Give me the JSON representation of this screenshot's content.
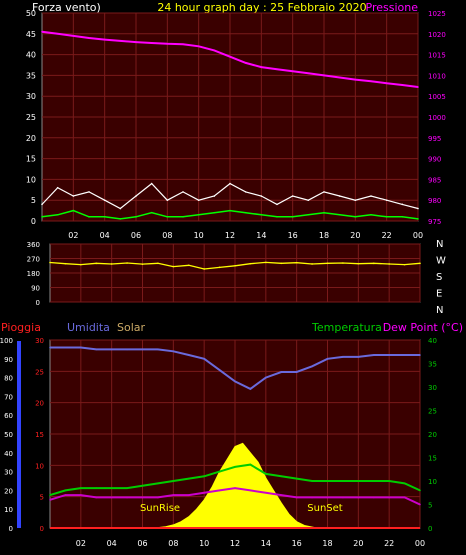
{
  "header": {
    "wind_label": "Forza vento)",
    "title": "24 hour graph day : 25 Febbraio 2020",
    "pressure_label": "Pressione"
  },
  "rain_legend": {
    "rain": "Pioggia",
    "humidity": "Umidita",
    "solar": "Solar",
    "temperature": "Temperatura",
    "dewpoint": "Dew Point (°C)"
  },
  "annotations": {
    "sunrise": "SunRise",
    "sunset": "SunSet"
  },
  "colors": {
    "panel_bg": "#3a0000",
    "grid": "#7a1a1a",
    "wind_axis": "#ffffff",
    "pressure": "#ff00ff",
    "pressure_axis": "#ff00ff",
    "wind_gust": "#ffffff",
    "wind_avg": "#00ff00",
    "direction": "#ffff00",
    "rain": "#ff2020",
    "humidity": "#6a6adc",
    "solar": "#ffff00",
    "temperature": "#00cc00",
    "dewpoint": "#cc00cc"
  },
  "chart_data": [
    {
      "type": "line",
      "xlabel": "",
      "x_ticks": [
        "02",
        "04",
        "06",
        "08",
        "10",
        "12",
        "14",
        "16",
        "18",
        "20",
        "22",
        "00"
      ],
      "left_axis": {
        "label": "Forza vento)",
        "ylim": [
          0,
          50
        ],
        "ticks": [
          0,
          5,
          10,
          15,
          20,
          25,
          30,
          35,
          40,
          45,
          50
        ]
      },
      "right_axis": {
        "label": "Pressione",
        "ylim": [
          975,
          1025
        ],
        "ticks": [
          975,
          980,
          985,
          990,
          995,
          1000,
          1005,
          1010,
          1015,
          1020,
          1025
        ]
      },
      "series": [
        {
          "name": "Pressione",
          "axis": "right",
          "x": [
            0,
            1,
            2,
            3,
            4,
            5,
            6,
            7,
            8,
            9,
            10,
            11,
            12,
            13,
            14,
            15,
            16,
            17,
            18,
            19,
            20,
            21,
            22,
            23,
            24
          ],
          "y": [
            1020.5,
            1020.0,
            1019.5,
            1019.0,
            1018.6,
            1018.3,
            1018.0,
            1017.8,
            1017.6,
            1017.5,
            1017.0,
            1016.0,
            1014.5,
            1013.0,
            1012.0,
            1011.5,
            1011.0,
            1010.5,
            1010.0,
            1009.5,
            1009.0,
            1008.6,
            1008.1,
            1007.7,
            1007.2
          ]
        },
        {
          "name": "Gust",
          "axis": "left",
          "x": [
            0,
            1,
            2,
            3,
            4,
            5,
            6,
            7,
            8,
            9,
            10,
            11,
            12,
            13,
            14,
            15,
            16,
            17,
            18,
            19,
            20,
            21,
            22,
            23,
            24
          ],
          "y": [
            4,
            8,
            6,
            7,
            5,
            3,
            6,
            9,
            5,
            7,
            5,
            6,
            9,
            7,
            6,
            4,
            6,
            5,
            7,
            6,
            5,
            6,
            5,
            4,
            3
          ]
        },
        {
          "name": "Average",
          "axis": "left",
          "x": [
            0,
            1,
            2,
            3,
            4,
            5,
            6,
            7,
            8,
            9,
            10,
            11,
            12,
            13,
            14,
            15,
            16,
            17,
            18,
            19,
            20,
            21,
            22,
            23,
            24
          ],
          "y": [
            1,
            1.5,
            2.5,
            1,
            1,
            0.5,
            1,
            2,
            1,
            1,
            1.5,
            2,
            2.5,
            2,
            1.5,
            1,
            1,
            1.5,
            2,
            1.5,
            1,
            1.5,
            1,
            1,
            0.5
          ]
        }
      ]
    },
    {
      "type": "line",
      "left_axis": {
        "ylim": [
          0,
          360
        ],
        "ticks": [
          0,
          90,
          180,
          270,
          360
        ]
      },
      "right_axis": {
        "labels": [
          "N",
          "W",
          "S",
          "E",
          "N"
        ]
      },
      "series": [
        {
          "name": "Direzione",
          "x": [
            0,
            1,
            2,
            3,
            4,
            5,
            6,
            7,
            8,
            9,
            10,
            11,
            12,
            13,
            14,
            15,
            16,
            17,
            18,
            19,
            20,
            21,
            22,
            23,
            24
          ],
          "y": [
            245,
            238,
            232,
            240,
            236,
            242,
            235,
            240,
            220,
            228,
            205,
            215,
            225,
            238,
            246,
            240,
            244,
            236,
            240,
            242,
            238,
            240,
            236,
            232,
            240
          ]
        }
      ]
    },
    {
      "type": "area",
      "left_axis": {
        "label": "Pioggia",
        "ylim": [
          0,
          30
        ],
        "ticks": [
          0,
          5,
          10,
          15,
          20,
          25,
          30
        ]
      },
      "humidity_axis": {
        "label": "Umidita",
        "ylim": [
          0,
          100
        ],
        "ticks": [
          0,
          10,
          20,
          30,
          40,
          50,
          60,
          70,
          80,
          90,
          100
        ]
      },
      "right_axis": {
        "label": "Temperatura",
        "ylim": [
          0,
          40
        ],
        "ticks": [
          0,
          5,
          10,
          15,
          20,
          25,
          30,
          35,
          40
        ]
      },
      "series": [
        {
          "name": "Umidita",
          "x": [
            0,
            1,
            2,
            3,
            4,
            5,
            6,
            7,
            8,
            9,
            10,
            11,
            12,
            13,
            14,
            15,
            16,
            17,
            18,
            19,
            20,
            21,
            22,
            23,
            24
          ],
          "y": [
            96,
            96,
            96,
            95,
            95,
            95,
            95,
            95,
            94,
            92,
            90,
            84,
            78,
            74,
            80,
            83,
            83,
            86,
            90,
            91,
            91,
            92,
            92,
            92,
            92
          ]
        },
        {
          "name": "Temperatura",
          "x": [
            0,
            1,
            2,
            3,
            4,
            5,
            6,
            7,
            8,
            9,
            10,
            11,
            12,
            13,
            14,
            15,
            16,
            17,
            18,
            19,
            20,
            21,
            22,
            23,
            24
          ],
          "y": [
            7,
            8,
            8.5,
            8.5,
            8.5,
            8.5,
            9,
            9.5,
            10,
            10.5,
            11,
            12,
            13,
            13.5,
            11.5,
            11,
            10.5,
            10,
            10,
            10,
            10,
            10,
            10,
            9.5,
            8
          ]
        },
        {
          "name": "Dew Point (°C)",
          "x": [
            0,
            1,
            2,
            3,
            4,
            5,
            6,
            7,
            8,
            9,
            10,
            11,
            12,
            13,
            14,
            15,
            16,
            17,
            18,
            19,
            20,
            21,
            22,
            23,
            24
          ],
          "y": [
            6,
            7,
            7,
            6.5,
            6.5,
            6.5,
            6.5,
            6.5,
            7,
            7,
            7.5,
            8,
            8.5,
            8,
            7.5,
            7,
            6.5,
            6.5,
            6.5,
            6.5,
            6.5,
            6.5,
            6.5,
            6.5,
            5
          ]
        },
        {
          "name": "Solar",
          "x": [
            6.8,
            7.5,
            8,
            8.5,
            9,
            9.5,
            10,
            10.5,
            11,
            11.5,
            12,
            12.5,
            13,
            13.5,
            14,
            14.5,
            15,
            15.5,
            16,
            16.5,
            17.3
          ],
          "y": [
            0,
            0.2,
            0.5,
            1,
            1.8,
            3,
            4.5,
            6.5,
            9,
            11,
            13,
            13.5,
            12,
            10.5,
            8,
            6,
            4,
            2.2,
            1,
            0.4,
            0
          ]
        },
        {
          "name": "Pioggia",
          "x": [
            0,
            24
          ],
          "y": [
            0,
            0
          ]
        }
      ],
      "annotations": [
        {
          "text": "SunRise",
          "x": 7
        },
        {
          "text": "SunSet",
          "x": 17.5
        }
      ]
    }
  ]
}
